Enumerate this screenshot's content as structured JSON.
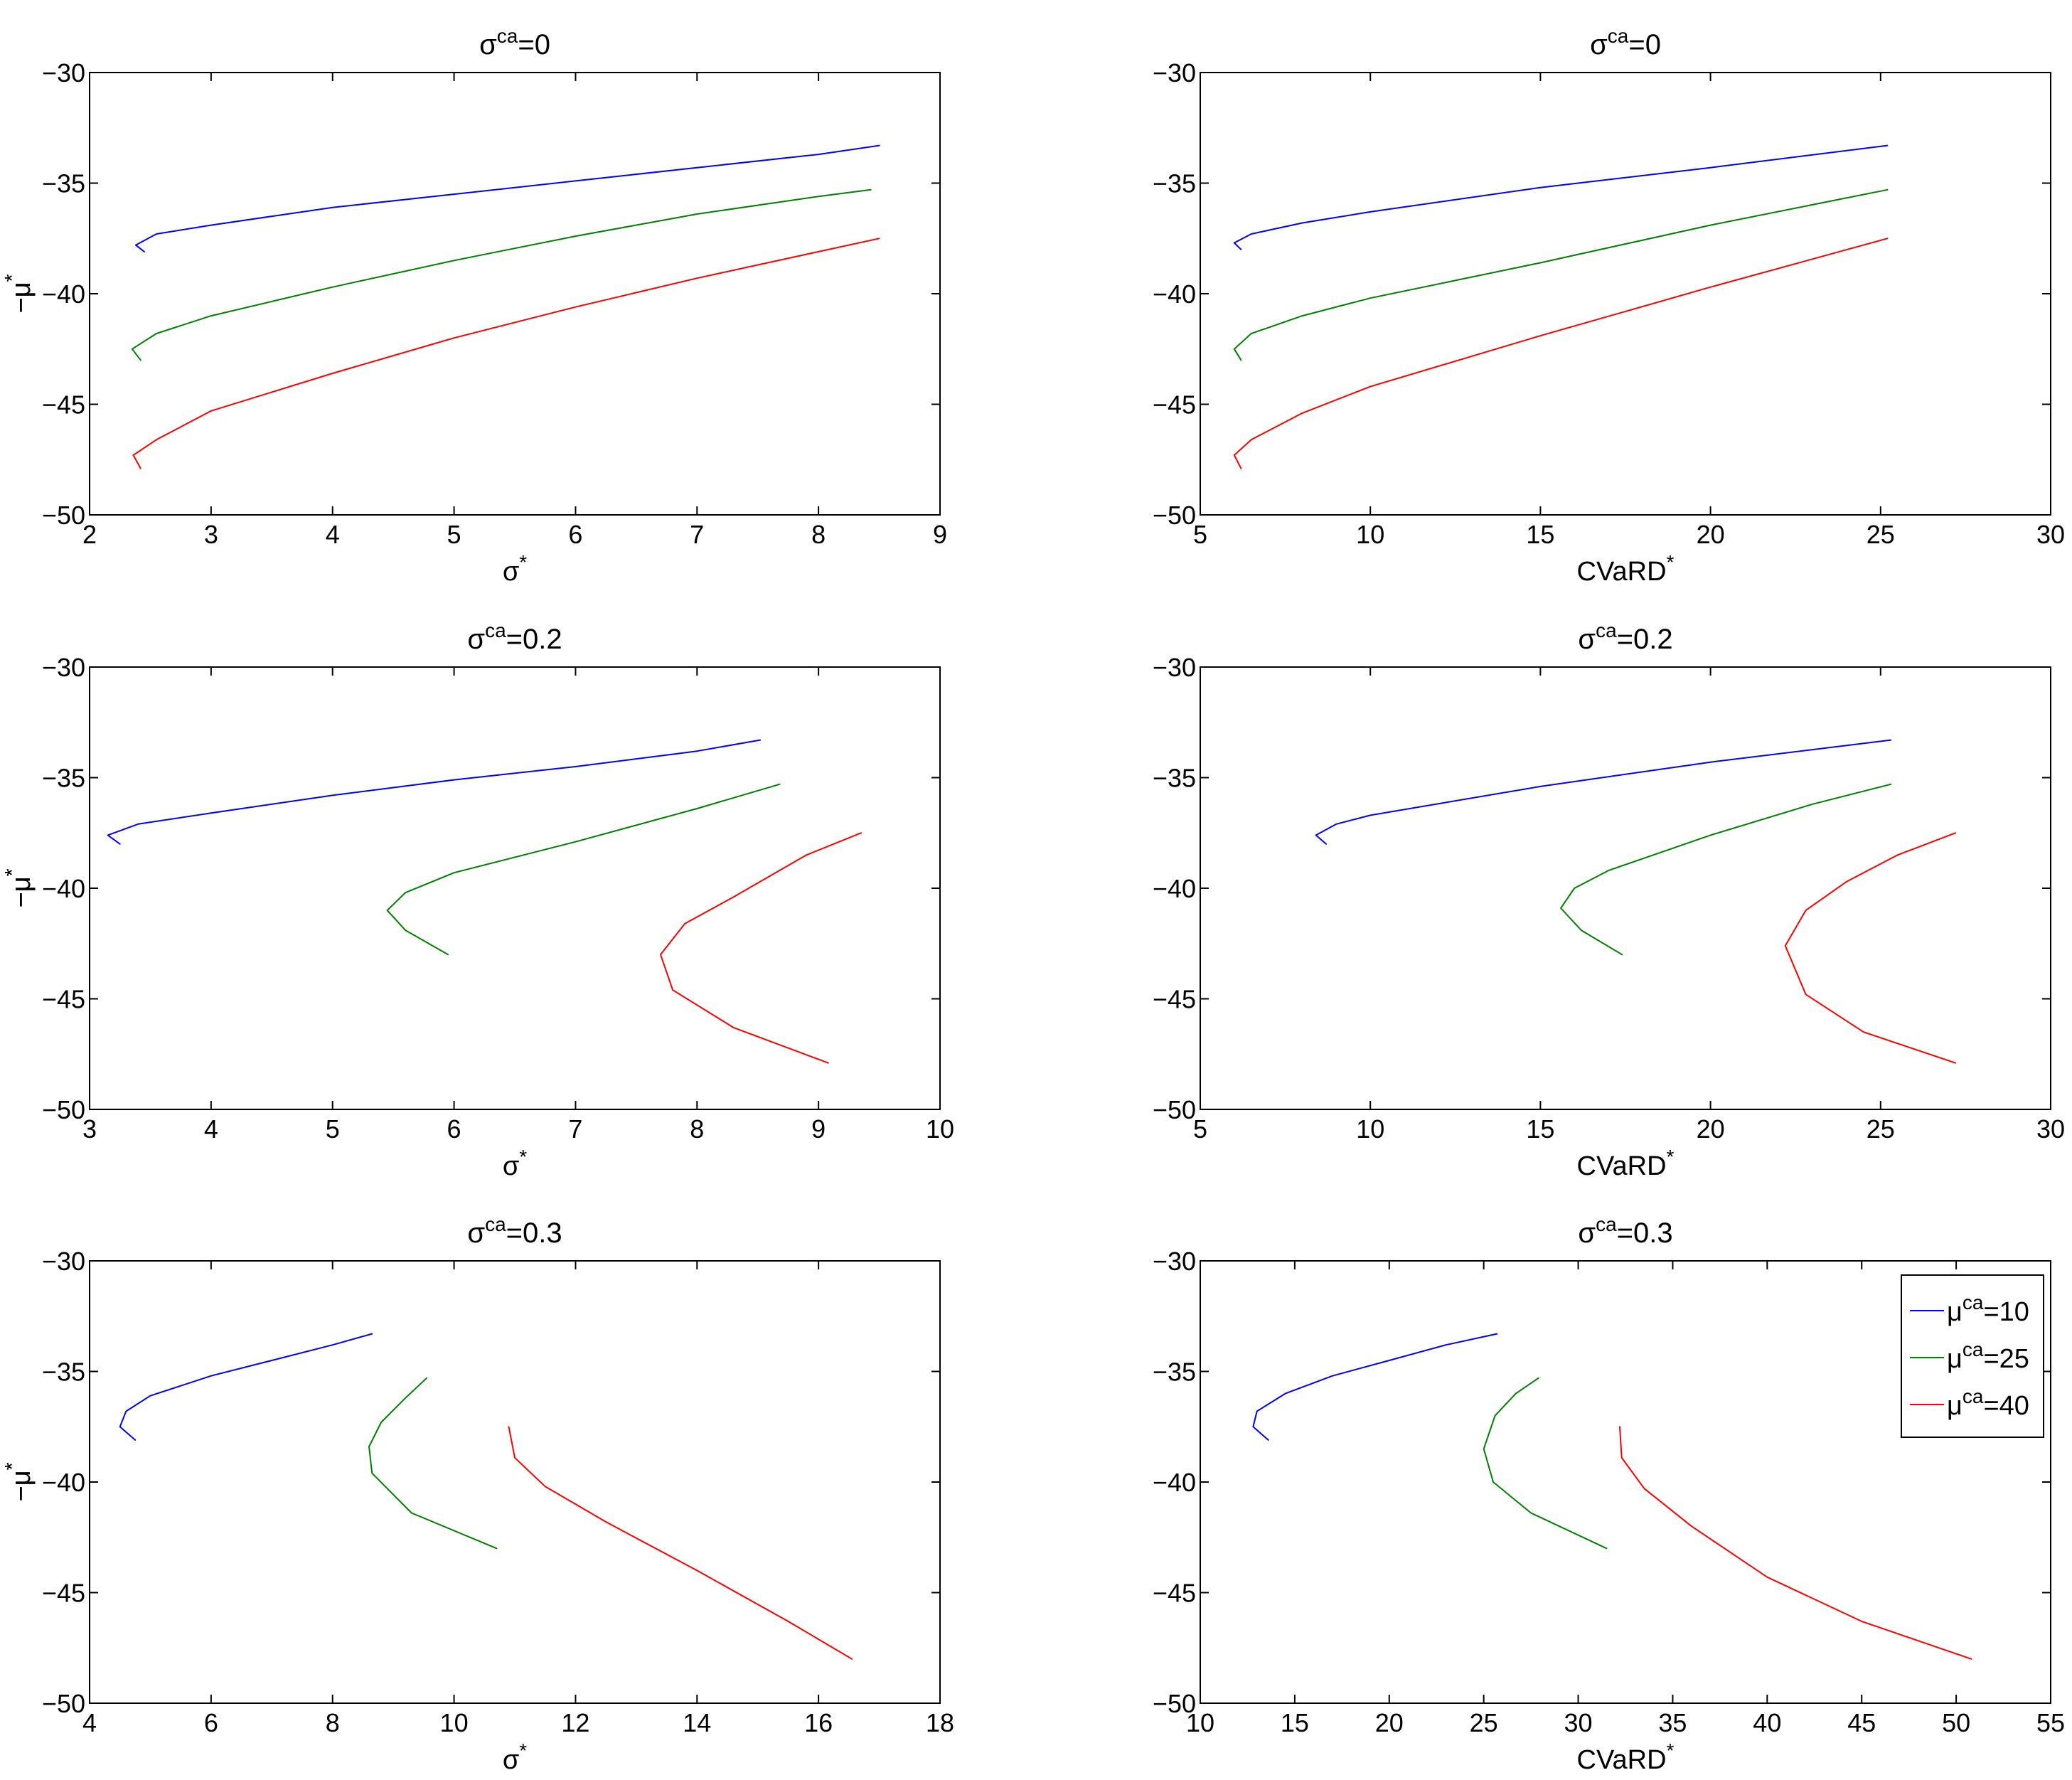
{
  "colors": {
    "mu10": "#0000ff",
    "mu25": "#008000",
    "mu40": "#ff0000"
  },
  "legend": {
    "placement": "top-right",
    "items": [
      {
        "key": "mu10",
        "sym": "μ",
        "sup": "ca",
        "rest": "=10"
      },
      {
        "key": "mu25",
        "sym": "μ",
        "sup": "ca",
        "rest": "=25"
      },
      {
        "key": "mu40",
        "sym": "μ",
        "sup": "ca",
        "rest": "=40"
      }
    ]
  },
  "chart_data": [
    {
      "type": "line",
      "title": {
        "base": "σ",
        "sup": "ca",
        "rest": "=0"
      },
      "xlabel": {
        "base": "σ",
        "sup": "*"
      },
      "ylabel": {
        "base": "−μ",
        "sup": "*"
      },
      "xlim": [
        2,
        9
      ],
      "ylim": [
        -50,
        -30
      ],
      "xticks": [
        2,
        3,
        4,
        5,
        6,
        7,
        8,
        9
      ],
      "yticks": [
        -30,
        -35,
        -40,
        -45,
        -50
      ],
      "series": [
        {
          "name": "μca=10",
          "key": "mu10",
          "points": [
            [
              2.45,
              -38.1
            ],
            [
              2.38,
              -37.8
            ],
            [
              2.55,
              -37.3
            ],
            [
              3.0,
              -36.9
            ],
            [
              4.0,
              -36.1
            ],
            [
              5.0,
              -35.5
            ],
            [
              6.0,
              -34.9
            ],
            [
              7.0,
              -34.3
            ],
            [
              8.0,
              -33.7
            ],
            [
              8.5,
              -33.3
            ]
          ]
        },
        {
          "name": "μca=25",
          "key": "mu25",
          "points": [
            [
              2.42,
              -43.0
            ],
            [
              2.35,
              -42.5
            ],
            [
              2.55,
              -41.8
            ],
            [
              3.0,
              -41.0
            ],
            [
              4.0,
              -39.7
            ],
            [
              5.0,
              -38.5
            ],
            [
              6.0,
              -37.4
            ],
            [
              7.0,
              -36.4
            ],
            [
              8.0,
              -35.6
            ],
            [
              8.43,
              -35.3
            ]
          ]
        },
        {
          "name": "μca=40",
          "key": "mu40",
          "points": [
            [
              2.42,
              -47.9
            ],
            [
              2.36,
              -47.3
            ],
            [
              2.55,
              -46.6
            ],
            [
              3.0,
              -45.3
            ],
            [
              4.0,
              -43.6
            ],
            [
              5.0,
              -42.0
            ],
            [
              6.0,
              -40.6
            ],
            [
              7.0,
              -39.3
            ],
            [
              8.0,
              -38.1
            ],
            [
              8.5,
              -37.5
            ]
          ]
        }
      ]
    },
    {
      "type": "line",
      "title": {
        "base": "σ",
        "sup": "ca",
        "rest": "=0"
      },
      "xlabel": {
        "base": "CVaRD",
        "sup": "*"
      },
      "ylabel": {
        "base": "−μ",
        "sup": "*"
      },
      "xlim": [
        5,
        30
      ],
      "ylim": [
        -50,
        -30
      ],
      "xticks": [
        5,
        10,
        15,
        20,
        25,
        30
      ],
      "yticks": [
        -30,
        -35,
        -40,
        -45,
        -50
      ],
      "series": [
        {
          "name": "μca=10",
          "key": "mu10",
          "points": [
            [
              6.2,
              -38.0
            ],
            [
              6.0,
              -37.7
            ],
            [
              6.5,
              -37.3
            ],
            [
              8.0,
              -36.8
            ],
            [
              10.0,
              -36.3
            ],
            [
              15.0,
              -35.2
            ],
            [
              20.0,
              -34.3
            ],
            [
              25.2,
              -33.3
            ]
          ]
        },
        {
          "name": "μca=25",
          "key": "mu25",
          "points": [
            [
              6.2,
              -43.0
            ],
            [
              6.0,
              -42.5
            ],
            [
              6.5,
              -41.8
            ],
            [
              8.0,
              -41.0
            ],
            [
              10.0,
              -40.2
            ],
            [
              15.0,
              -38.6
            ],
            [
              20.0,
              -36.9
            ],
            [
              25.2,
              -35.3
            ]
          ]
        },
        {
          "name": "μca=40",
          "key": "mu40",
          "points": [
            [
              6.2,
              -47.9
            ],
            [
              6.0,
              -47.3
            ],
            [
              6.5,
              -46.6
            ],
            [
              8.0,
              -45.4
            ],
            [
              10.0,
              -44.2
            ],
            [
              15.0,
              -41.9
            ],
            [
              20.0,
              -39.7
            ],
            [
              25.2,
              -37.5
            ]
          ]
        }
      ]
    },
    {
      "type": "line",
      "title": {
        "base": "σ",
        "sup": "ca",
        "rest": "=0.2"
      },
      "xlabel": {
        "base": "σ",
        "sup": "*"
      },
      "ylabel": {
        "base": "−μ",
        "sup": "*"
      },
      "xlim": [
        3,
        10
      ],
      "ylim": [
        -50,
        -30
      ],
      "xticks": [
        3,
        4,
        5,
        6,
        7,
        8,
        9,
        10
      ],
      "yticks": [
        -30,
        -35,
        -40,
        -45,
        -50
      ],
      "series": [
        {
          "name": "μca=10",
          "key": "mu10",
          "points": [
            [
              3.25,
              -38.0
            ],
            [
              3.15,
              -37.6
            ],
            [
              3.4,
              -37.1
            ],
            [
              4.0,
              -36.6
            ],
            [
              5.0,
              -35.8
            ],
            [
              6.0,
              -35.1
            ],
            [
              7.0,
              -34.5
            ],
            [
              8.0,
              -33.8
            ],
            [
              8.52,
              -33.3
            ]
          ]
        },
        {
          "name": "μca=25",
          "key": "mu25",
          "points": [
            [
              5.95,
              -43.0
            ],
            [
              5.6,
              -41.9
            ],
            [
              5.45,
              -41.0
            ],
            [
              5.6,
              -40.2
            ],
            [
              6.0,
              -39.3
            ],
            [
              7.0,
              -37.9
            ],
            [
              8.0,
              -36.4
            ],
            [
              8.68,
              -35.3
            ]
          ]
        },
        {
          "name": "μca=40",
          "key": "mu40",
          "points": [
            [
              9.08,
              -47.9
            ],
            [
              8.3,
              -46.3
            ],
            [
              7.8,
              -44.6
            ],
            [
              7.7,
              -43.0
            ],
            [
              7.9,
              -41.6
            ],
            [
              8.3,
              -40.4
            ],
            [
              8.9,
              -38.5
            ],
            [
              9.35,
              -37.5
            ]
          ]
        }
      ]
    },
    {
      "type": "line",
      "title": {
        "base": "σ",
        "sup": "ca",
        "rest": "=0.2"
      },
      "xlabel": {
        "base": "CVaRD",
        "sup": "*"
      },
      "ylabel": {
        "base": "−μ",
        "sup": "*"
      },
      "xlim": [
        5,
        30
      ],
      "ylim": [
        -50,
        -30
      ],
      "xticks": [
        5,
        10,
        15,
        20,
        25,
        30
      ],
      "yticks": [
        -30,
        -35,
        -40,
        -45,
        -50
      ],
      "series": [
        {
          "name": "μca=10",
          "key": "mu10",
          "points": [
            [
              8.7,
              -38.0
            ],
            [
              8.4,
              -37.6
            ],
            [
              9.0,
              -37.1
            ],
            [
              10.0,
              -36.7
            ],
            [
              15.0,
              -35.4
            ],
            [
              20.0,
              -34.3
            ],
            [
              25.3,
              -33.3
            ]
          ]
        },
        {
          "name": "μca=25",
          "key": "mu25",
          "points": [
            [
              17.4,
              -43.0
            ],
            [
              16.2,
              -41.9
            ],
            [
              15.6,
              -40.9
            ],
            [
              16.0,
              -40.0
            ],
            [
              17.0,
              -39.2
            ],
            [
              20.0,
              -37.6
            ],
            [
              23.0,
              -36.2
            ],
            [
              25.3,
              -35.3
            ]
          ]
        },
        {
          "name": "μca=40",
          "key": "mu40",
          "points": [
            [
              27.2,
              -47.9
            ],
            [
              24.5,
              -46.5
            ],
            [
              22.8,
              -44.8
            ],
            [
              22.2,
              -42.6
            ],
            [
              22.8,
              -41.0
            ],
            [
              24.0,
              -39.7
            ],
            [
              25.5,
              -38.5
            ],
            [
              27.2,
              -37.5
            ]
          ]
        }
      ]
    },
    {
      "type": "line",
      "title": {
        "base": "σ",
        "sup": "ca",
        "rest": "=0.3"
      },
      "xlabel": {
        "base": "σ",
        "sup": "*"
      },
      "ylabel": {
        "base": "−μ",
        "sup": "*"
      },
      "xlim": [
        4,
        18
      ],
      "ylim": [
        -50,
        -30
      ],
      "xticks": [
        4,
        6,
        8,
        10,
        12,
        14,
        16,
        18
      ],
      "yticks": [
        -30,
        -35,
        -40,
        -45,
        -50
      ],
      "series": [
        {
          "name": "μca=10",
          "key": "mu10",
          "points": [
            [
              4.75,
              -38.1
            ],
            [
              4.5,
              -37.5
            ],
            [
              4.6,
              -36.8
            ],
            [
              5.0,
              -36.1
            ],
            [
              6.0,
              -35.2
            ],
            [
              7.0,
              -34.5
            ],
            [
              8.0,
              -33.8
            ],
            [
              8.65,
              -33.3
            ]
          ]
        },
        {
          "name": "μca=25",
          "key": "mu25",
          "points": [
            [
              10.7,
              -43.0
            ],
            [
              9.3,
              -41.4
            ],
            [
              8.65,
              -39.6
            ],
            [
              8.6,
              -38.4
            ],
            [
              8.8,
              -37.3
            ],
            [
              9.2,
              -36.2
            ],
            [
              9.55,
              -35.3
            ]
          ]
        },
        {
          "name": "μca=40",
          "key": "mu40",
          "points": [
            [
              10.9,
              -37.5
            ],
            [
              11.0,
              -38.9
            ],
            [
              11.5,
              -40.2
            ],
            [
              12.5,
              -41.8
            ],
            [
              14.0,
              -44.0
            ],
            [
              15.5,
              -46.3
            ],
            [
              16.55,
              -48.0
            ]
          ]
        }
      ]
    },
    {
      "type": "line",
      "title": {
        "base": "σ",
        "sup": "ca",
        "rest": "=0.3"
      },
      "xlabel": {
        "base": "CVaRD",
        "sup": "*"
      },
      "ylabel": {
        "base": "−μ",
        "sup": "*"
      },
      "xlim": [
        10,
        55
      ],
      "ylim": [
        -50,
        -30
      ],
      "xticks": [
        10,
        15,
        20,
        25,
        30,
        35,
        40,
        45,
        50,
        55
      ],
      "yticks": [
        -30,
        -35,
        -40,
        -45,
        -50
      ],
      "series": [
        {
          "name": "μca=10",
          "key": "mu10",
          "points": [
            [
              13.6,
              -38.1
            ],
            [
              12.8,
              -37.5
            ],
            [
              13.0,
              -36.8
            ],
            [
              14.5,
              -36.0
            ],
            [
              17.0,
              -35.2
            ],
            [
              20.0,
              -34.5
            ],
            [
              23.0,
              -33.8
            ],
            [
              25.7,
              -33.3
            ]
          ]
        },
        {
          "name": "μca=25",
          "key": "mu25",
          "points": [
            [
              31.5,
              -43.0
            ],
            [
              27.5,
              -41.4
            ],
            [
              25.5,
              -40.0
            ],
            [
              25.0,
              -38.5
            ],
            [
              25.6,
              -37.0
            ],
            [
              26.7,
              -36.0
            ],
            [
              27.9,
              -35.3
            ]
          ]
        },
        {
          "name": "μca=40",
          "key": "mu40",
          "points": [
            [
              32.2,
              -37.5
            ],
            [
              32.3,
              -38.9
            ],
            [
              33.5,
              -40.3
            ],
            [
              36.0,
              -42.0
            ],
            [
              40.0,
              -44.3
            ],
            [
              45.0,
              -46.3
            ],
            [
              50.8,
              -48.0
            ]
          ]
        }
      ]
    }
  ]
}
